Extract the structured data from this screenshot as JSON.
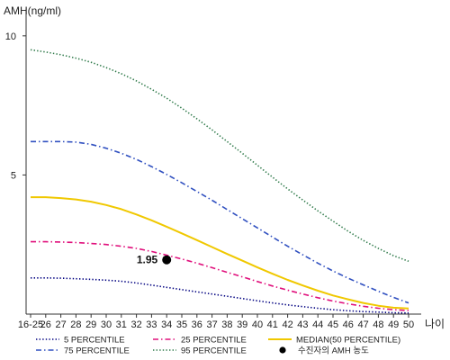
{
  "chart_data": {
    "type": "line",
    "ylabel": "AMH(ng/ml)",
    "xlabel": "나이",
    "ylim": [
      0,
      10.9
    ],
    "yticks": [
      5,
      10
    ],
    "grid": false,
    "legend_position": "bottom",
    "categories": [
      "16-25",
      "26",
      "27",
      "28",
      "29",
      "30",
      "31",
      "32",
      "33",
      "34",
      "35",
      "36",
      "37",
      "38",
      "39",
      "40",
      "41",
      "42",
      "43",
      "44",
      "45",
      "46",
      "47",
      "48",
      "49",
      "50"
    ],
    "series": [
      {
        "name": "5 PERCENTILE",
        "color": "#000080",
        "style": "dotted",
        "values": [
          1.3,
          1.3,
          1.29,
          1.27,
          1.25,
          1.22,
          1.18,
          1.12,
          1.04,
          0.96,
          0.88,
          0.8,
          0.72,
          0.64,
          0.56,
          0.48,
          0.4,
          0.33,
          0.27,
          0.21,
          0.16,
          0.12,
          0.09,
          0.07,
          0.05,
          0.04
        ]
      },
      {
        "name": "25 PERCENTILE",
        "color": "#e0107c",
        "style": "dashdot",
        "values": [
          2.6,
          2.6,
          2.59,
          2.57,
          2.54,
          2.5,
          2.44,
          2.36,
          2.25,
          2.12,
          1.98,
          1.83,
          1.67,
          1.5,
          1.34,
          1.17,
          1.01,
          0.86,
          0.72,
          0.59,
          0.47,
          0.37,
          0.28,
          0.21,
          0.16,
          0.13
        ]
      },
      {
        "name": "MEDIAN(50 PERCENTILE)",
        "color": "#f0c800",
        "style": "solid",
        "values": [
          4.2,
          4.2,
          4.17,
          4.12,
          4.04,
          3.92,
          3.77,
          3.58,
          3.37,
          3.14,
          2.9,
          2.66,
          2.41,
          2.16,
          1.92,
          1.68,
          1.45,
          1.23,
          1.03,
          0.84,
          0.67,
          0.53,
          0.4,
          0.3,
          0.23,
          0.2
        ]
      },
      {
        "name": "75 PERCENTILE",
        "color": "#3050c0",
        "style": "dashdot",
        "values": [
          6.2,
          6.2,
          6.2,
          6.18,
          6.1,
          5.96,
          5.78,
          5.56,
          5.3,
          5.02,
          4.72,
          4.41,
          4.09,
          3.76,
          3.43,
          3.1,
          2.77,
          2.44,
          2.13,
          1.83,
          1.55,
          1.29,
          1.05,
          0.82,
          0.6,
          0.4
        ]
      },
      {
        "name": "95 PERCENTILE",
        "color": "#2f7a4a",
        "style": "dotted",
        "values": [
          9.5,
          9.42,
          9.32,
          9.2,
          9.05,
          8.86,
          8.64,
          8.38,
          8.08,
          7.76,
          7.4,
          7.02,
          6.62,
          6.2,
          5.78,
          5.35,
          4.92,
          4.5,
          4.1,
          3.71,
          3.34,
          2.98,
          2.65,
          2.36,
          2.1,
          1.9
        ]
      }
    ],
    "points": [
      {
        "name": "수진자의 AMH 농도",
        "x": "34",
        "y": 1.95,
        "label": "1.95",
        "color": "#000000"
      }
    ]
  }
}
